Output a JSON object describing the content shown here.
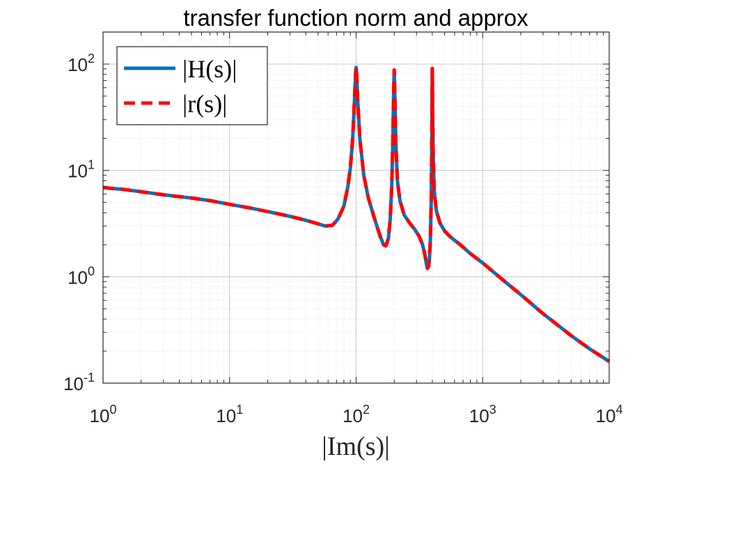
{
  "chart_data": {
    "type": "line",
    "title": "transfer function norm and approx",
    "xlabel": "|Im(s)|",
    "ylabel": "",
    "x_scale": "log",
    "y_scale": "log",
    "xlim": [
      1,
      10000
    ],
    "ylim": [
      0.1,
      200
    ],
    "grid": true,
    "minor_grid": true,
    "legend_position": "top-left",
    "x_ticks": [
      {
        "base": "10",
        "exp": "0",
        "value": 1
      },
      {
        "base": "10",
        "exp": "1",
        "value": 10
      },
      {
        "base": "10",
        "exp": "2",
        "value": 100
      },
      {
        "base": "10",
        "exp": "3",
        "value": 1000
      },
      {
        "base": "10",
        "exp": "4",
        "value": 10000
      }
    ],
    "y_ticks": [
      {
        "base": "10",
        "exp": "-1",
        "value": 0.1
      },
      {
        "base": "10",
        "exp": "0",
        "value": 1
      },
      {
        "base": "10",
        "exp": "1",
        "value": 10
      },
      {
        "base": "10",
        "exp": "2",
        "value": 100
      }
    ],
    "series": [
      {
        "name": "|H(s)|",
        "color": "#0072bd",
        "style": "solid",
        "x": [
          1,
          1.5,
          2,
          3,
          5,
          7,
          10,
          15,
          20,
          30,
          40,
          50,
          57,
          65,
          72,
          80,
          86,
          90,
          94,
          97,
          99,
          100,
          101,
          103,
          107,
          115,
          125,
          140,
          155,
          165,
          172,
          180,
          186,
          191,
          195,
          198,
          200,
          202,
          206,
          212,
          222,
          240,
          265,
          290,
          315,
          335,
          350,
          358,
          366,
          374,
          380,
          386,
          392,
          396,
          398,
          400,
          402,
          406,
          414,
          430,
          460,
          500,
          550,
          600,
          650,
          700,
          800,
          1000,
          1500,
          2000,
          3000,
          5000,
          7000,
          10000
        ],
        "y": [
          6.9,
          6.6,
          6.3,
          5.9,
          5.5,
          5.2,
          4.8,
          4.4,
          4.1,
          3.7,
          3.4,
          3.15,
          3.0,
          3.05,
          3.5,
          4.6,
          7,
          10.5,
          20,
          45,
          80,
          93,
          80,
          45,
          20,
          9,
          5.5,
          3.5,
          2.4,
          2.0,
          1.95,
          2.3,
          3.5,
          7,
          18,
          55,
          88,
          55,
          18,
          8,
          5.2,
          3.8,
          3.2,
          2.8,
          2.4,
          2.0,
          1.6,
          1.35,
          1.2,
          1.25,
          1.5,
          2.2,
          5,
          15,
          45,
          91,
          45,
          15,
          6.5,
          4.2,
          3.2,
          2.7,
          2.4,
          2.2,
          2.05,
          1.9,
          1.65,
          1.35,
          0.9,
          0.68,
          0.45,
          0.28,
          0.21,
          0.16
        ]
      },
      {
        "name": "|r(s)|",
        "color": "#ff0000",
        "style": "dashed",
        "x": [
          1,
          1.5,
          2,
          3,
          5,
          7,
          10,
          15,
          20,
          30,
          40,
          50,
          57,
          65,
          72,
          80,
          86,
          90,
          94,
          97,
          99,
          100,
          101,
          103,
          107,
          115,
          125,
          140,
          155,
          165,
          172,
          180,
          186,
          191,
          195,
          198,
          200,
          202,
          206,
          212,
          222,
          240,
          265,
          290,
          315,
          335,
          350,
          358,
          366,
          374,
          380,
          386,
          392,
          396,
          398,
          400,
          402,
          406,
          414,
          430,
          460,
          500,
          550,
          600,
          650,
          700,
          800,
          1000,
          1500,
          2000,
          3000,
          5000,
          7000,
          10000
        ],
        "y": [
          6.9,
          6.6,
          6.3,
          5.9,
          5.5,
          5.2,
          4.8,
          4.4,
          4.1,
          3.7,
          3.4,
          3.15,
          3.0,
          3.05,
          3.5,
          4.6,
          7,
          10.5,
          20,
          45,
          80,
          93,
          80,
          45,
          20,
          9,
          5.5,
          3.5,
          2.4,
          2.0,
          1.95,
          2.3,
          3.5,
          7,
          18,
          55,
          88,
          55,
          18,
          8,
          5.2,
          3.8,
          3.2,
          2.8,
          2.4,
          2.0,
          1.6,
          1.35,
          1.2,
          1.25,
          1.5,
          2.2,
          5,
          15,
          45,
          91,
          45,
          15,
          6.5,
          4.2,
          3.2,
          2.7,
          2.4,
          2.2,
          2.05,
          1.9,
          1.65,
          1.35,
          0.9,
          0.68,
          0.45,
          0.28,
          0.21,
          0.16
        ]
      }
    ]
  }
}
